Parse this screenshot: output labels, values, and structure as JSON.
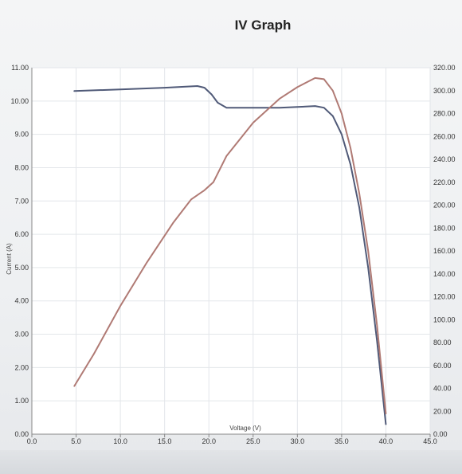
{
  "chart_data": {
    "type": "line",
    "title": "IV Graph",
    "xlabel": "Voltage (V)",
    "ylabel": "Current (A)",
    "xlim": [
      0,
      45
    ],
    "ylim": [
      0,
      11
    ],
    "y2lim": [
      0,
      320
    ],
    "x_ticks": [
      "0.0",
      "5.0",
      "10.0",
      "15.0",
      "20.0",
      "25.0",
      "30.0",
      "35.0",
      "40.0",
      "45.0"
    ],
    "y_ticks": [
      "0.00",
      "1.00",
      "2.00",
      "3.00",
      "4.00",
      "5.00",
      "6.00",
      "7.00",
      "8.00",
      "9.00",
      "10.00",
      "11.00"
    ],
    "y2_ticks": [
      "0.00",
      "20.00",
      "40.00",
      "60.00",
      "80.00",
      "100.00",
      "120.00",
      "140.00",
      "160.00",
      "180.00",
      "200.00",
      "220.00",
      "240.00",
      "260.00",
      "280.00",
      "300.00",
      "320.00"
    ],
    "grid": true,
    "series": [
      {
        "axis": "left",
        "color": "#505a78",
        "x": [
          4.8,
          10,
          15,
          18.7,
          19.5,
          20.3,
          21,
          22,
          25,
          28,
          30,
          32,
          33,
          34,
          35,
          36,
          37,
          38,
          39,
          40
        ],
        "y": [
          10.3,
          10.35,
          10.4,
          10.45,
          10.4,
          10.2,
          9.95,
          9.8,
          9.8,
          9.8,
          9.82,
          9.85,
          9.8,
          9.55,
          9.0,
          8.1,
          6.8,
          5.0,
          2.8,
          0.3
        ]
      },
      {
        "axis": "right",
        "color": "#b07a74",
        "x": [
          4.8,
          7,
          10,
          13,
          16,
          18,
          19.5,
          20.5,
          22,
          25,
          28,
          30,
          32,
          33,
          34,
          35,
          36,
          37,
          38,
          39,
          40
        ],
        "y": [
          42,
          70,
          112,
          150,
          185,
          205,
          213,
          220,
          243,
          272,
          293,
          303,
          311,
          310,
          300,
          280,
          250,
          210,
          160,
          95,
          18
        ]
      }
    ]
  }
}
